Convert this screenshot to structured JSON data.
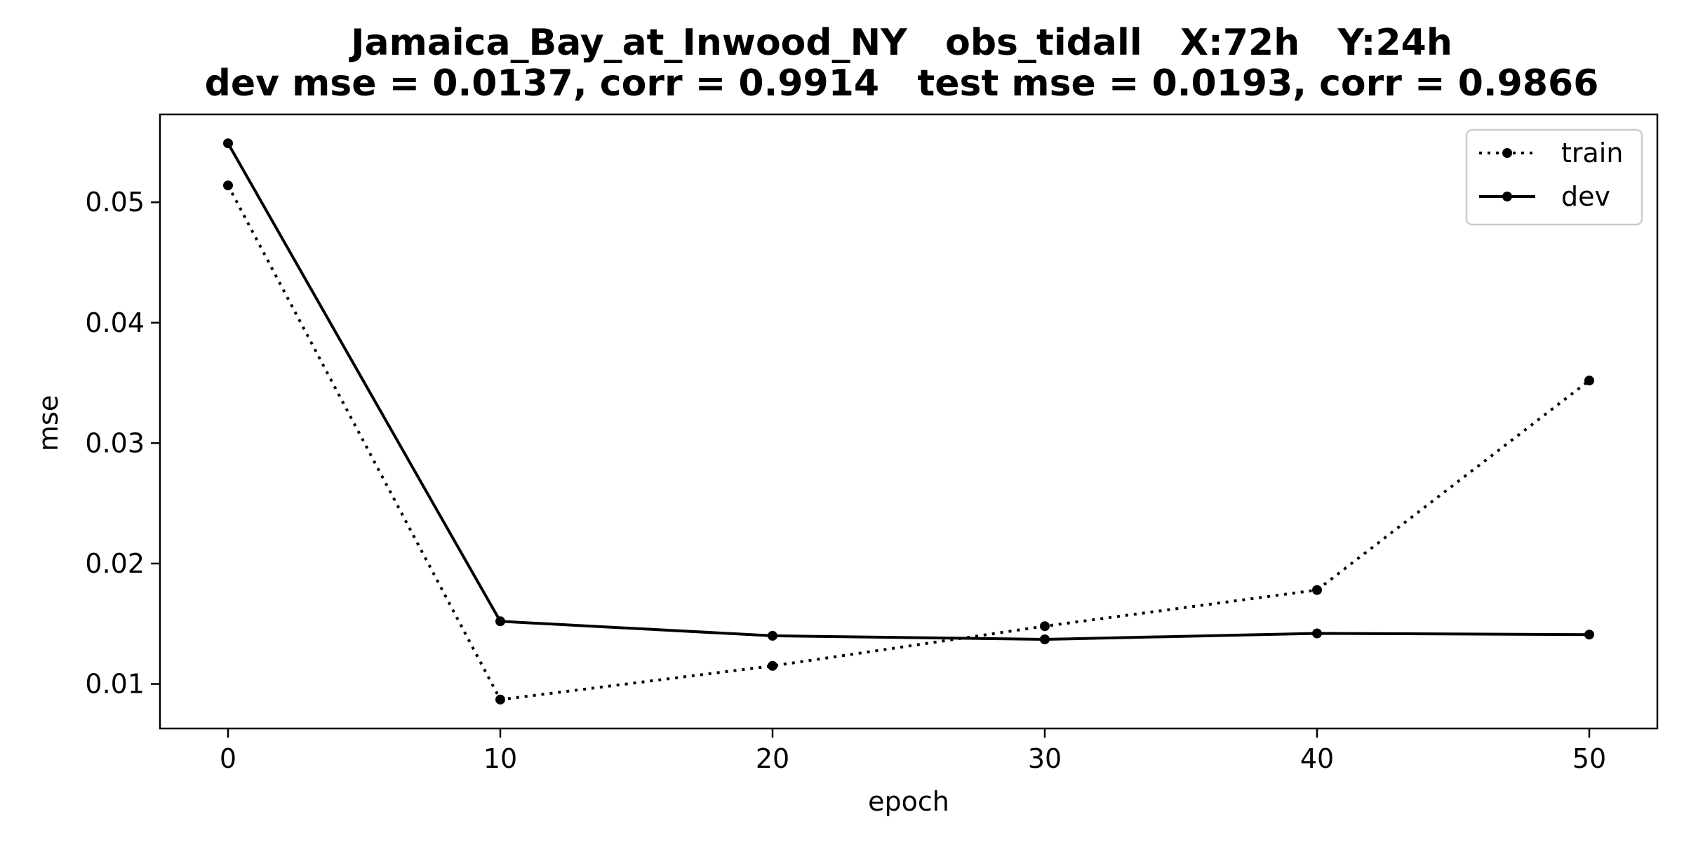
{
  "chart_data": {
    "type": "line",
    "title_line1": "Jamaica_Bay_at_Inwood_NY   obs_tidall   X:72h   Y:24h",
    "title_line2": "dev mse = 0.0137, corr = 0.9914   test mse = 0.0193, corr = 0.9866",
    "xlabel": "epoch",
    "ylabel": "mse",
    "x": [
      0,
      10,
      20,
      30,
      40,
      50
    ],
    "xlim": [
      -2.5,
      52.5
    ],
    "ylim": [
      0.0063,
      0.0573
    ],
    "xticks": [
      "0",
      "10",
      "20",
      "30",
      "40",
      "50"
    ],
    "yticks": [
      "0.01",
      "0.02",
      "0.03",
      "0.04",
      "0.05"
    ],
    "grid": false,
    "legend_position": "top-right",
    "series": [
      {
        "name": "train",
        "style": "dotted",
        "color": "#000000",
        "values": [
          0.0514,
          0.0087,
          0.0115,
          0.0148,
          0.0178,
          0.0352
        ]
      },
      {
        "name": "dev",
        "style": "solid",
        "color": "#000000",
        "values": [
          0.0549,
          0.0152,
          0.014,
          0.0137,
          0.0142,
          0.0141
        ]
      }
    ]
  }
}
